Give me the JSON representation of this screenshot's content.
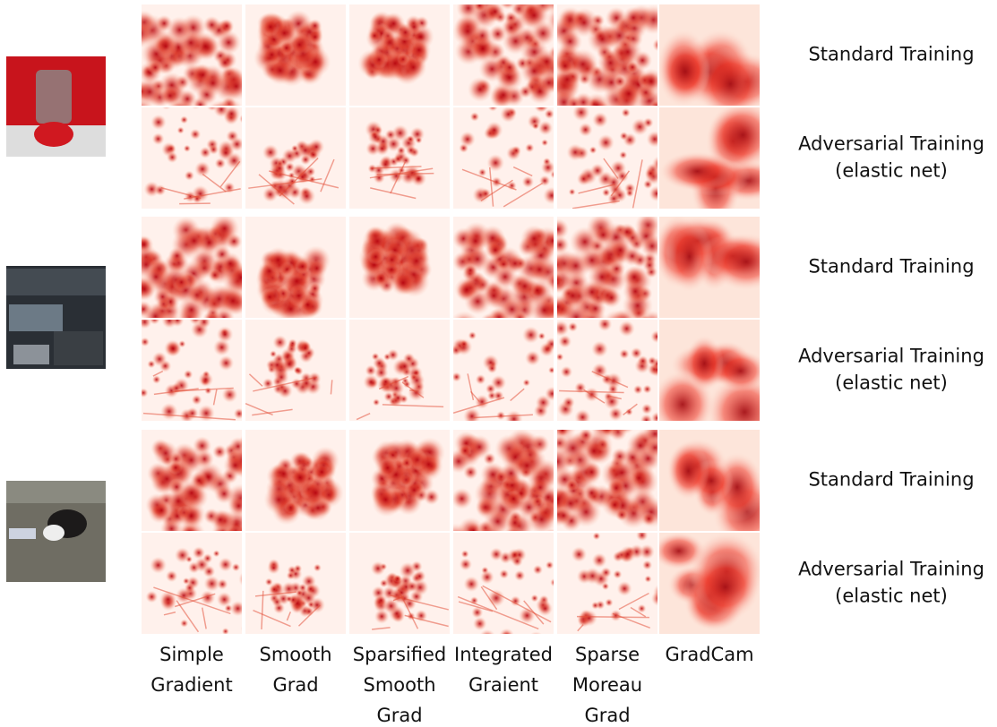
{
  "figure": {
    "columns": [
      {
        "lines": [
          "Simple",
          "Gradient"
        ]
      },
      {
        "lines": [
          "Smooth",
          "Grad"
        ]
      },
      {
        "lines": [
          "Sparsified",
          "Smooth",
          "Grad"
        ]
      },
      {
        "lines": [
          "Integrated",
          "Graient"
        ]
      },
      {
        "lines": [
          "Sparse",
          "Moreau",
          "Grad"
        ]
      },
      {
        "lines": [
          "GradCam"
        ]
      }
    ],
    "groups": [
      {
        "rows": [
          {
            "lines": [
              "Standard Training"
            ]
          },
          {
            "lines": [
              "Adversarial Training",
              "(elastic net)"
            ]
          }
        ]
      },
      {
        "rows": [
          {
            "lines": [
              "Standard Training"
            ]
          },
          {
            "lines": [
              "Adversarial Training",
              "(elastic net)"
            ]
          }
        ]
      },
      {
        "rows": [
          {
            "lines": [
              "Standard Training"
            ]
          },
          {
            "lines": [
              "Adversarial Training",
              "(elastic net)"
            ]
          }
        ]
      }
    ]
  }
}
